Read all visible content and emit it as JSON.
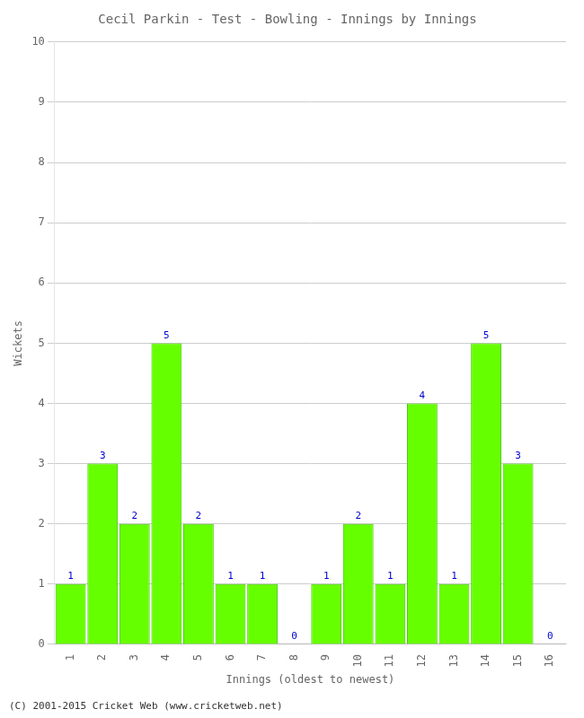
{
  "chart_data": {
    "type": "bar",
    "title": "Cecil Parkin - Test - Bowling - Innings by Innings",
    "x_label": "Innings (oldest to newest)",
    "y_label": "Wickets",
    "categories": [
      1,
      2,
      3,
      4,
      5,
      6,
      7,
      8,
      9,
      10,
      11,
      12,
      13,
      14,
      15,
      16
    ],
    "values": [
      1,
      3,
      2,
      5,
      2,
      1,
      1,
      0,
      1,
      2,
      1,
      4,
      1,
      5,
      3,
      0
    ],
    "color": "#66ff00",
    "ylim": [
      0,
      10
    ],
    "yticks": [
      0,
      1,
      2,
      3,
      4,
      5,
      6,
      7,
      8,
      9,
      10
    ],
    "grid": true,
    "data_labels": true,
    "annotations": [
      "(C) 2001-2015 Cricket Web (www.cricketweb.net)"
    ]
  }
}
